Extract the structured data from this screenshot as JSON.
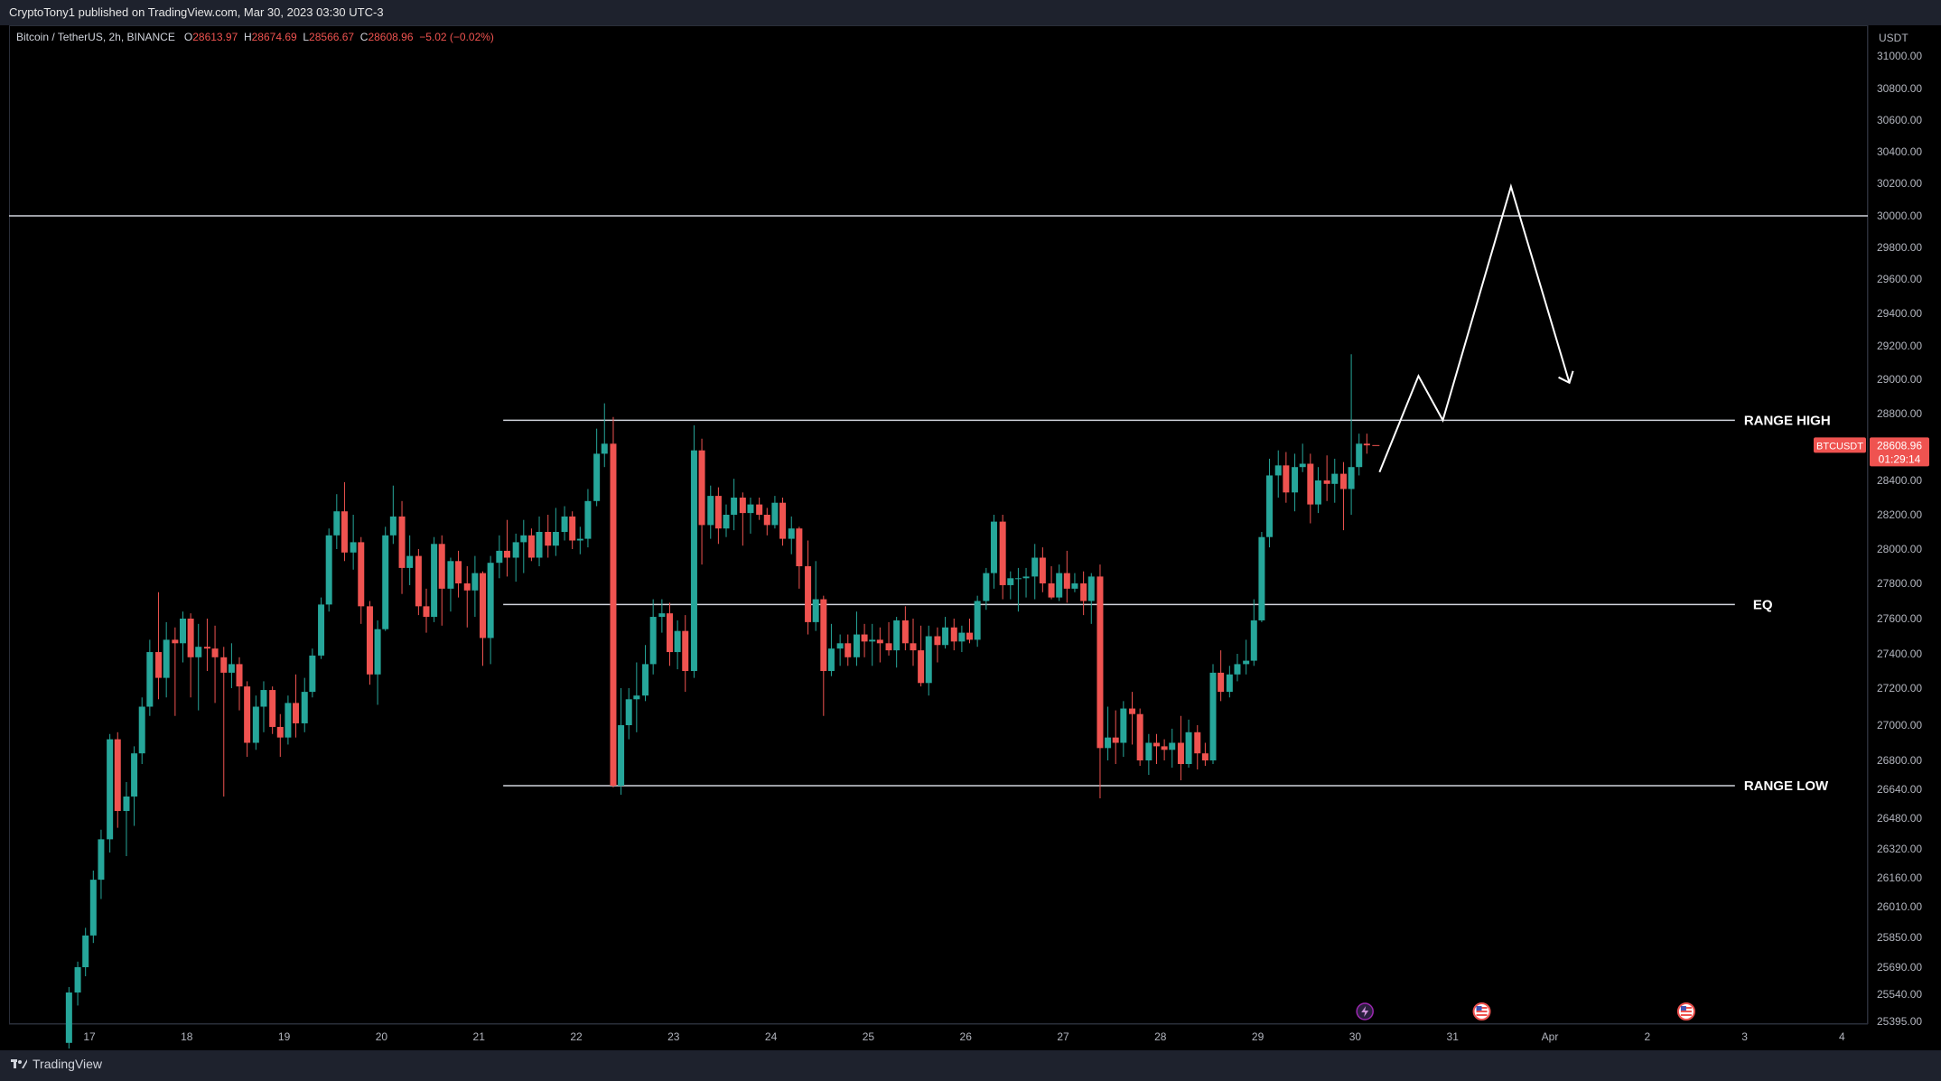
{
  "header": {
    "published_by": "CryptoTony1 published on TradingView.com, Mar 30, 2023 03:30 UTC-3"
  },
  "symbol": {
    "name": "Bitcoin / TetherUS, 2h, BINANCE",
    "open_label": "O",
    "open": "28613.97",
    "high_label": "H",
    "high": "28674.69",
    "low_label": "L",
    "low": "28566.67",
    "close_label": "C",
    "close": "28608.96",
    "change": "−5.02 (−0.02%)"
  },
  "footer": {
    "brand": "TradingView"
  },
  "colors": {
    "up": "#26a69a",
    "down": "#ef5350",
    "level_line": "#d1d4dc",
    "price_tag": "#ef5350"
  },
  "chart_data": {
    "type": "candlestick",
    "y_unit": "USDT",
    "y_ticks": [
      "31000.00",
      "30800.00",
      "30600.00",
      "30400.00",
      "30200.00",
      "30000.00",
      "29800.00",
      "29600.00",
      "29400.00",
      "29200.00",
      "29000.00",
      "28800.00",
      "28400.00",
      "28200.00",
      "28000.00",
      "27800.00",
      "27600.00",
      "27400.00",
      "27200.00",
      "27000.00",
      "26800.00",
      "26640.00",
      "26480.00",
      "26320.00",
      "26160.00",
      "26010.00",
      "25850.00",
      "25690.00",
      "25540.00",
      "25395.00"
    ],
    "x_ticks": [
      "17",
      "18",
      "19",
      "20",
      "21",
      "22",
      "23",
      "24",
      "25",
      "26",
      "27",
      "28",
      "29",
      "30",
      "31",
      "Apr",
      "2",
      "3",
      "4"
    ],
    "current_price": {
      "symbol": "BTCUSDT",
      "price": "28608.96",
      "countdown": "01:29:14"
    },
    "levels": [
      {
        "label": "",
        "price": 30000
      },
      {
        "label": "RANGE HIGH",
        "price": 28760
      },
      {
        "label": "EQ",
        "price": 27680
      },
      {
        "label": "RANGE LOW",
        "price": 26660
      }
    ],
    "projection_path": [
      {
        "time": 30.25,
        "price": 28450
      },
      {
        "time": 30.65,
        "price": 29020
      },
      {
        "time": 30.9,
        "price": 28760
      },
      {
        "time": 31.6,
        "price": 30180
      },
      {
        "time": 32.2,
        "price": 28980
      }
    ],
    "event_markers": [
      {
        "time": 30.1,
        "icon": "lightning-icon"
      },
      {
        "time": 31.3,
        "icon": "us-flag-icon"
      },
      {
        "time": 33.4,
        "icon": "us-flag-icon"
      }
    ],
    "candles": [
      [
        16.79,
        25280,
        25580,
        25250,
        25550
      ],
      [
        16.88,
        25550,
        25720,
        25480,
        25690
      ],
      [
        16.96,
        25690,
        25900,
        25640,
        25860
      ],
      [
        17.04,
        25860,
        26200,
        25820,
        26150
      ],
      [
        17.12,
        26150,
        26420,
        26050,
        26370
      ],
      [
        17.21,
        26370,
        26950,
        26300,
        26920
      ],
      [
        17.29,
        26920,
        26960,
        26430,
        26520
      ],
      [
        17.38,
        26520,
        26680,
        26280,
        26600
      ],
      [
        17.46,
        26600,
        26880,
        26440,
        26840
      ],
      [
        17.54,
        26840,
        27150,
        26780,
        27100
      ],
      [
        17.62,
        27100,
        27480,
        27050,
        27410
      ],
      [
        17.71,
        27410,
        27750,
        27140,
        27260
      ],
      [
        17.79,
        27260,
        27580,
        27150,
        27480
      ],
      [
        17.88,
        27480,
        27550,
        27050,
        27460
      ],
      [
        17.96,
        27460,
        27640,
        27350,
        27600
      ],
      [
        18.04,
        27600,
        27630,
        27150,
        27380
      ],
      [
        18.12,
        27380,
        27570,
        27080,
        27440
      ],
      [
        18.21,
        27440,
        27600,
        27300,
        27430
      ],
      [
        18.29,
        27430,
        27560,
        27120,
        27380
      ],
      [
        18.38,
        27380,
        27440,
        26600,
        27290
      ],
      [
        18.46,
        27290,
        27460,
        27200,
        27340
      ],
      [
        18.54,
        27340,
        27380,
        27080,
        27210
      ],
      [
        18.62,
        27210,
        27240,
        26820,
        26900
      ],
      [
        18.71,
        26900,
        27160,
        26860,
        27100
      ],
      [
        18.79,
        27100,
        27240,
        26960,
        27190
      ],
      [
        18.88,
        27190,
        27210,
        26950,
        26990
      ],
      [
        18.96,
        26990,
        27060,
        26820,
        26930
      ],
      [
        19.04,
        26930,
        27160,
        26890,
        27120
      ],
      [
        19.12,
        27120,
        27280,
        26930,
        27010
      ],
      [
        19.21,
        27010,
        27260,
        26960,
        27180
      ],
      [
        19.29,
        27180,
        27430,
        27150,
        27390
      ],
      [
        19.38,
        27390,
        27720,
        27370,
        27680
      ],
      [
        19.46,
        27680,
        28120,
        27640,
        28080
      ],
      [
        19.54,
        28080,
        28320,
        28000,
        28220
      ],
      [
        19.62,
        28220,
        28390,
        27930,
        27980
      ],
      [
        19.71,
        27980,
        28200,
        27880,
        28040
      ],
      [
        19.79,
        28040,
        28070,
        27570,
        27670
      ],
      [
        19.88,
        27670,
        27700,
        27220,
        27280
      ],
      [
        19.96,
        27280,
        27590,
        27110,
        27540
      ],
      [
        20.04,
        27540,
        28130,
        27530,
        28080
      ],
      [
        20.12,
        28080,
        28370,
        28030,
        28190
      ],
      [
        20.21,
        28190,
        28280,
        27740,
        27890
      ],
      [
        20.29,
        27890,
        28080,
        27790,
        27960
      ],
      [
        20.38,
        27960,
        28000,
        27620,
        27670
      ],
      [
        20.46,
        27670,
        27770,
        27520,
        27610
      ],
      [
        20.54,
        27610,
        28070,
        27580,
        28030
      ],
      [
        20.62,
        28030,
        28080,
        27560,
        27770
      ],
      [
        20.71,
        27770,
        27950,
        27640,
        27930
      ],
      [
        20.79,
        27930,
        27990,
        27720,
        27800
      ],
      [
        20.88,
        27800,
        27900,
        27550,
        27760
      ],
      [
        20.96,
        27760,
        27960,
        27610,
        27860
      ],
      [
        21.04,
        27860,
        27870,
        27330,
        27490
      ],
      [
        21.12,
        27490,
        27960,
        27340,
        27920
      ],
      [
        21.21,
        27920,
        28080,
        27830,
        27990
      ],
      [
        21.29,
        27990,
        28170,
        27840,
        27950
      ],
      [
        21.38,
        27950,
        28090,
        27810,
        28040
      ],
      [
        21.46,
        28040,
        28170,
        27860,
        28080
      ],
      [
        21.54,
        28080,
        28120,
        27930,
        27950
      ],
      [
        21.62,
        27950,
        28190,
        27900,
        28100
      ],
      [
        21.71,
        28100,
        28200,
        27950,
        28020
      ],
      [
        21.79,
        28020,
        28240,
        27960,
        28100
      ],
      [
        21.88,
        28100,
        28250,
        28050,
        28190
      ],
      [
        21.96,
        28190,
        28220,
        28000,
        28050
      ],
      [
        22.04,
        28050,
        28130,
        27970,
        28060
      ],
      [
        22.12,
        28060,
        28350,
        28010,
        28280
      ],
      [
        22.21,
        28280,
        28710,
        28250,
        28560
      ],
      [
        22.29,
        28560,
        28860,
        28480,
        28620
      ],
      [
        22.38,
        28620,
        28780,
        26650,
        26660
      ],
      [
        22.46,
        26660,
        27200,
        26610,
        27000
      ],
      [
        22.54,
        27000,
        27200,
        26920,
        27140
      ],
      [
        22.62,
        27140,
        27350,
        26960,
        27160
      ],
      [
        22.71,
        27160,
        27450,
        27130,
        27340
      ],
      [
        22.79,
        27340,
        27710,
        27280,
        27610
      ],
      [
        22.88,
        27610,
        27710,
        27520,
        27630
      ],
      [
        22.96,
        27630,
        27690,
        27330,
        27410
      ],
      [
        23.04,
        27410,
        27590,
        27310,
        27530
      ],
      [
        23.12,
        27530,
        27620,
        27180,
        27300
      ],
      [
        23.21,
        27300,
        28730,
        27260,
        28580
      ],
      [
        23.29,
        28580,
        28650,
        27910,
        28140
      ],
      [
        23.38,
        28140,
        28370,
        28060,
        28310
      ],
      [
        23.46,
        28310,
        28360,
        28030,
        28120
      ],
      [
        23.54,
        28120,
        28260,
        28070,
        28200
      ],
      [
        23.62,
        28200,
        28410,
        28110,
        28300
      ],
      [
        23.71,
        28300,
        28330,
        28020,
        28210
      ],
      [
        23.79,
        28210,
        28300,
        28090,
        28260
      ],
      [
        23.88,
        28260,
        28300,
        28170,
        28200
      ],
      [
        23.96,
        28200,
        28240,
        28080,
        28140
      ],
      [
        24.04,
        28140,
        28310,
        28120,
        28270
      ],
      [
        24.12,
        28270,
        28300,
        28020,
        28060
      ],
      [
        24.21,
        28060,
        28190,
        27970,
        28120
      ],
      [
        24.29,
        28120,
        28130,
        27770,
        27900
      ],
      [
        24.38,
        27900,
        28050,
        27510,
        27580
      ],
      [
        24.46,
        27580,
        27930,
        27530,
        27710
      ],
      [
        24.54,
        27710,
        27730,
        27050,
        27300
      ],
      [
        24.62,
        27300,
        27570,
        27270,
        27430
      ],
      [
        24.71,
        27430,
        27510,
        27330,
        27460
      ],
      [
        24.79,
        27460,
        27510,
        27330,
        27380
      ],
      [
        24.88,
        27380,
        27640,
        27330,
        27510
      ],
      [
        24.96,
        27510,
        27570,
        27380,
        27470
      ],
      [
        25.04,
        27470,
        27570,
        27330,
        27480
      ],
      [
        25.12,
        27480,
        27550,
        27350,
        27460
      ],
      [
        25.21,
        27460,
        27580,
        27390,
        27420
      ],
      [
        25.29,
        27420,
        27610,
        27320,
        27590
      ],
      [
        25.38,
        27590,
        27670,
        27420,
        27460
      ],
      [
        25.46,
        27460,
        27600,
        27330,
        27420
      ],
      [
        25.54,
        27420,
        27560,
        27210,
        27230
      ],
      [
        25.62,
        27230,
        27560,
        27160,
        27500
      ],
      [
        25.71,
        27500,
        27550,
        27350,
        27450
      ],
      [
        25.79,
        27450,
        27610,
        27430,
        27550
      ],
      [
        25.88,
        27550,
        27600,
        27420,
        27470
      ],
      [
        25.96,
        27470,
        27560,
        27410,
        27520
      ],
      [
        26.04,
        27520,
        27600,
        27460,
        27480
      ],
      [
        26.12,
        27480,
        27730,
        27440,
        27700
      ],
      [
        26.21,
        27700,
        27890,
        27650,
        27860
      ],
      [
        26.29,
        27860,
        28200,
        27770,
        28160
      ],
      [
        26.38,
        28160,
        28200,
        27710,
        27790
      ],
      [
        26.46,
        27790,
        27870,
        27710,
        27830
      ],
      [
        26.54,
        27830,
        27890,
        27640,
        27830
      ],
      [
        26.62,
        27830,
        27890,
        27720,
        27840
      ],
      [
        26.71,
        27840,
        28030,
        27710,
        27950
      ],
      [
        26.79,
        27950,
        28010,
        27750,
        27800
      ],
      [
        26.88,
        27800,
        27900,
        27710,
        27720
      ],
      [
        26.96,
        27720,
        27910,
        27700,
        27860
      ],
      [
        27.04,
        27860,
        27990,
        27690,
        27770
      ],
      [
        27.12,
        27770,
        27860,
        27750,
        27800
      ],
      [
        27.21,
        27800,
        27870,
        27620,
        27700
      ],
      [
        27.29,
        27700,
        27860,
        27570,
        27840
      ],
      [
        27.38,
        27840,
        27910,
        26590,
        26870
      ],
      [
        27.46,
        26870,
        27100,
        26800,
        26930
      ],
      [
        27.54,
        26930,
        27080,
        26780,
        26900
      ],
      [
        27.62,
        26900,
        27130,
        26820,
        27090
      ],
      [
        27.71,
        27090,
        27180,
        26890,
        27060
      ],
      [
        27.79,
        27060,
        27090,
        26770,
        26800
      ],
      [
        27.88,
        26800,
        26950,
        26720,
        26900
      ],
      [
        27.96,
        26900,
        26950,
        26780,
        26880
      ],
      [
        28.04,
        26880,
        26920,
        26800,
        26860
      ],
      [
        28.12,
        26860,
        26980,
        26760,
        26900
      ],
      [
        28.21,
        26900,
        27050,
        26690,
        26780
      ],
      [
        28.29,
        26780,
        27030,
        26760,
        26960
      ],
      [
        28.38,
        26960,
        27000,
        26750,
        26840
      ],
      [
        28.46,
        26840,
        26900,
        26770,
        26800
      ],
      [
        28.54,
        26800,
        27340,
        26780,
        27290
      ],
      [
        28.62,
        27290,
        27420,
        27130,
        27180
      ],
      [
        28.71,
        27180,
        27330,
        27150,
        27280
      ],
      [
        28.79,
        27280,
        27400,
        27240,
        27340
      ],
      [
        28.88,
        27340,
        27480,
        27280,
        27360
      ],
      [
        28.96,
        27360,
        27710,
        27330,
        27590
      ],
      [
        29.04,
        27590,
        28100,
        27580,
        28070
      ],
      [
        29.12,
        28070,
        28530,
        28010,
        28430
      ],
      [
        29.21,
        28430,
        28580,
        28300,
        28490
      ],
      [
        29.29,
        28490,
        28570,
        28270,
        28330
      ],
      [
        29.38,
        28330,
        28560,
        28220,
        28480
      ],
      [
        29.46,
        28480,
        28620,
        28450,
        28500
      ],
      [
        29.54,
        28500,
        28560,
        28150,
        28260
      ],
      [
        29.62,
        28260,
        28480,
        28210,
        28400
      ],
      [
        29.71,
        28400,
        28550,
        28280,
        28380
      ],
      [
        29.79,
        28380,
        28530,
        28270,
        28440
      ],
      [
        29.88,
        28440,
        28510,
        28110,
        28350
      ],
      [
        29.96,
        28350,
        29150,
        28200,
        28480
      ],
      [
        30.04,
        28480,
        28680,
        28430,
        28620
      ],
      [
        30.12,
        28620,
        28680,
        28560,
        28610
      ]
    ]
  }
}
